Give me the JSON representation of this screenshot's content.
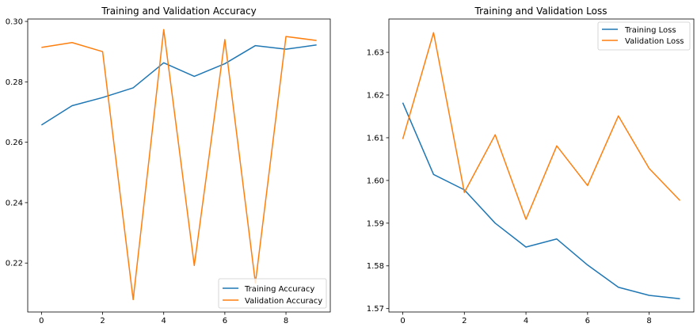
{
  "chart_data": [
    {
      "type": "line",
      "title": "Training and Validation Accuracy",
      "xlabel": "",
      "ylabel": "",
      "x": [
        0,
        1,
        2,
        3,
        4,
        5,
        6,
        7,
        8,
        9
      ],
      "xlim": [
        -0.45,
        9.45
      ],
      "ylim": [
        0.2038,
        0.3008
      ],
      "xticks": [
        0,
        2,
        4,
        6,
        8
      ],
      "xtick_labels": [
        "0",
        "2",
        "4",
        "6",
        "8"
      ],
      "yticks": [
        0.22,
        0.24,
        0.26,
        0.28,
        0.3
      ],
      "ytick_labels": [
        "0.22",
        "0.24",
        "0.26",
        "0.28",
        "0.30"
      ],
      "grid": false,
      "legend_position": "lower-right",
      "series": [
        {
          "name": "Training Accuracy",
          "color": "#1f77b4",
          "values": [
            0.2657,
            0.2721,
            0.2748,
            0.278,
            0.2863,
            0.2818,
            0.286,
            0.292,
            0.2908,
            0.2922
          ]
        },
        {
          "name": "Validation Accuracy",
          "color": "#ff7f0e",
          "values": [
            0.2914,
            0.293,
            0.29,
            0.2079,
            0.2973,
            0.2192,
            0.294,
            0.2134,
            0.295,
            0.2937
          ]
        }
      ]
    },
    {
      "type": "line",
      "title": "Training and Validation Loss",
      "xlabel": "",
      "ylabel": "",
      "x": [
        0,
        1,
        2,
        3,
        4,
        5,
        6,
        7,
        8,
        9
      ],
      "xlim": [
        -0.45,
        9.45
      ],
      "ylim": [
        1.5692,
        1.6378
      ],
      "xticks": [
        0,
        2,
        4,
        6,
        8
      ],
      "xtick_labels": [
        "0",
        "2",
        "4",
        "6",
        "8"
      ],
      "yticks": [
        1.57,
        1.58,
        1.59,
        1.6,
        1.61,
        1.62,
        1.63
      ],
      "ytick_labels": [
        "1.57",
        "1.58",
        "1.59",
        "1.60",
        "1.61",
        "1.62",
        "1.63"
      ],
      "grid": false,
      "legend_position": "upper-right",
      "series": [
        {
          "name": "Training Loss",
          "color": "#1f77b4",
          "values": [
            1.6182,
            1.6014,
            1.5978,
            1.59,
            1.5844,
            1.5863,
            1.5802,
            1.575,
            1.5731,
            1.5723
          ]
        },
        {
          "name": "Validation Loss",
          "color": "#ff7f0e",
          "values": [
            1.6097,
            1.6346,
            1.5972,
            1.6107,
            1.5909,
            1.6081,
            1.5988,
            1.6151,
            1.6028,
            1.5953
          ]
        }
      ]
    }
  ]
}
